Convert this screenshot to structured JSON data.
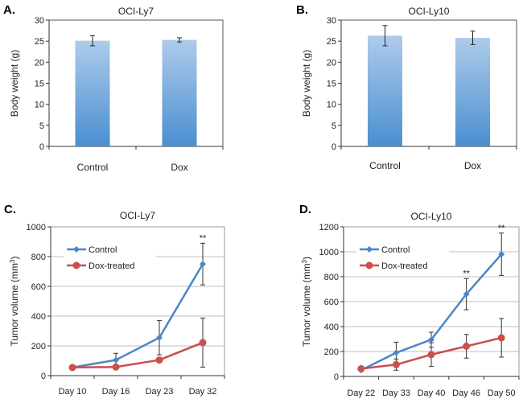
{
  "chart_data": [
    {
      "panel": "A.",
      "type": "bar",
      "title": "OCI-Ly7",
      "xlabel": "",
      "ylabel": "Body weight (g)",
      "ylim": [
        0,
        30
      ],
      "yticks": [
        0,
        5,
        10,
        15,
        20,
        25,
        30
      ],
      "categories": [
        "Control",
        "Dox"
      ],
      "values": [
        25.1,
        25.3
      ],
      "errors": [
        1.2,
        0.5
      ],
      "bar_color_top": "#a9c8ea",
      "bar_color_bottom": "#4a8fd0"
    },
    {
      "panel": "B.",
      "type": "bar",
      "title": "OCI-Ly10",
      "xlabel": "",
      "ylabel": "Body weight (g)",
      "ylim": [
        0,
        30
      ],
      "yticks": [
        0,
        5,
        10,
        15,
        20,
        25,
        30
      ],
      "categories": [
        "Control",
        "Dox"
      ],
      "values": [
        26.3,
        25.8
      ],
      "errors": [
        2.4,
        1.6
      ],
      "bar_color_top": "#a9c8ea",
      "bar_color_bottom": "#4a8fd0"
    },
    {
      "panel": "C.",
      "type": "line",
      "title": "OCI-Ly7",
      "xlabel": "",
      "ylabel": "Tumor volume (mm3)",
      "ylim": [
        0,
        1000
      ],
      "yticks": [
        0,
        200,
        400,
        600,
        800,
        1000
      ],
      "grid": true,
      "legend": "top-left",
      "categories": [
        "Day 10",
        "Day 16",
        "Day 23",
        "Day 32"
      ],
      "series": [
        {
          "name": "Control",
          "color": "#4a86c8",
          "marker": "diamond",
          "values": [
            55,
            105,
            255,
            750
          ],
          "errors": [
            0,
            45,
            115,
            140
          ]
        },
        {
          "name": "Dox-treated",
          "color": "#c9504c",
          "marker": "circle",
          "values": [
            55,
            58,
            105,
            222
          ],
          "errors": [
            0,
            0,
            15,
            165
          ]
        }
      ],
      "annotations": [
        {
          "category": "Day 32",
          "text": "**"
        }
      ]
    },
    {
      "panel": "D.",
      "type": "line",
      "title": "OCI-Ly10",
      "xlabel": "",
      "ylabel": "Tumor volume (mm3)",
      "ylim": [
        0,
        1200
      ],
      "yticks": [
        0,
        200,
        400,
        600,
        800,
        1000,
        1200
      ],
      "grid": true,
      "legend": "top-left",
      "categories": [
        "Day 22",
        "Day 33",
        "Day 40",
        "Day 46",
        "Day 50"
      ],
      "series": [
        {
          "name": "Control",
          "color": "#4a86c8",
          "marker": "diamond",
          "values": [
            50,
            190,
            295,
            660,
            980
          ],
          "errors": [
            0,
            85,
            60,
            125,
            170
          ]
        },
        {
          "name": "Dox-treated",
          "color": "#c9504c",
          "marker": "circle",
          "values": [
            62,
            95,
            175,
            242,
            310
          ],
          "errors": [
            0,
            45,
            95,
            95,
            155
          ]
        }
      ],
      "annotations": [
        {
          "category": "Day 46",
          "text": "**"
        },
        {
          "category": "Day 50",
          "text": "**"
        }
      ]
    }
  ]
}
